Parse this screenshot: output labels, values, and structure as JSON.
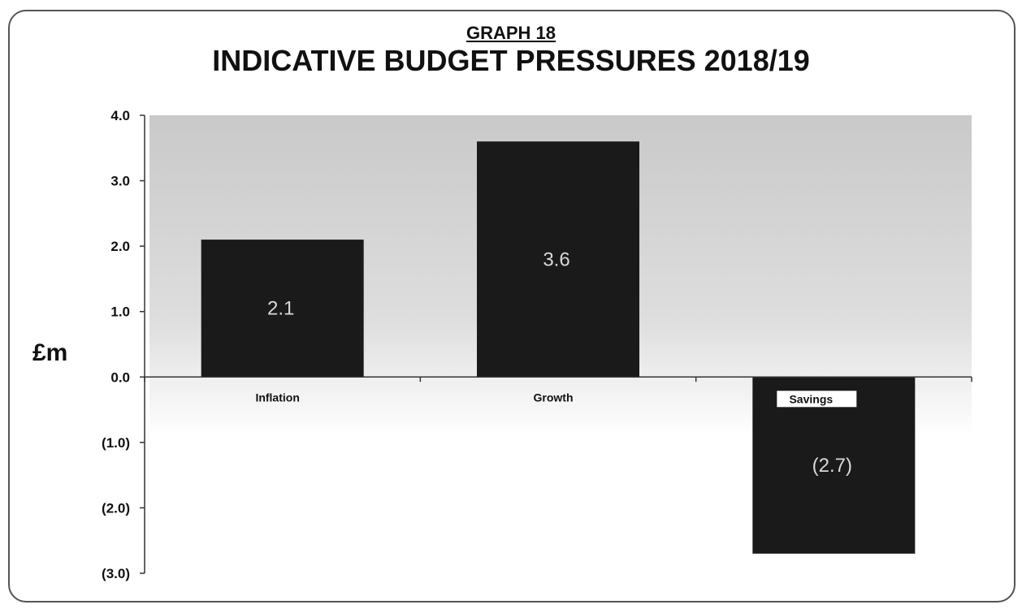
{
  "chart_data": {
    "type": "bar",
    "graph_label": "GRAPH 18",
    "title": "INDICATIVE BUDGET PRESSURES 2018/19",
    "xlabel": "",
    "ylabel": "£m",
    "categories": [
      "Inflation",
      "Growth",
      "Savings"
    ],
    "values": [
      2.1,
      3.6,
      -2.7
    ],
    "data_labels": [
      "2.1",
      "3.6",
      "(2.7)"
    ],
    "ylim": [
      -3.0,
      4.0
    ],
    "yticks": [
      4.0,
      3.0,
      2.0,
      1.0,
      0.0,
      -1.0,
      -2.0,
      -3.0
    ],
    "ytick_labels": [
      "4.0",
      "3.0",
      "2.0",
      "1.0",
      "0.0",
      "(1.0)",
      "(2.0)",
      "(3.0)"
    ],
    "grid": false,
    "legend": "none",
    "bar_color": "#1a1a1a",
    "plot_gradient_top": "#c9c9c9",
    "plot_gradient_bottom": "#ffffff"
  }
}
